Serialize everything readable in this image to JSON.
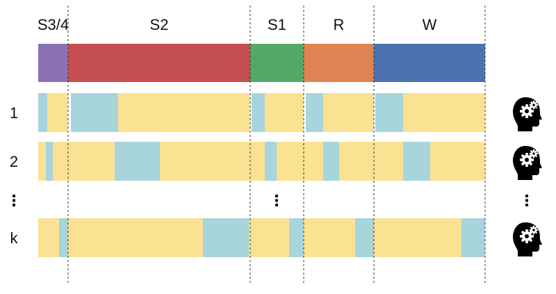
{
  "diagram": {
    "stages": [
      {
        "label": "S3/4",
        "color": "#8B72B5"
      },
      {
        "label": "S2",
        "color": "#C44E52"
      },
      {
        "label": "S1",
        "color": "#55A868"
      },
      {
        "label": "R",
        "color": "#DD8452"
      },
      {
        "label": "W",
        "color": "#4C72B0"
      }
    ],
    "colors": {
      "attended": "#FAE292",
      "unattended": "#A8D4DB"
    },
    "rows": [
      {
        "label": "1"
      },
      {
        "label": "2"
      },
      {
        "label": "k"
      }
    ],
    "ellipsis_symbol": "⋮",
    "row_icon": "head-with-gears-icon"
  }
}
